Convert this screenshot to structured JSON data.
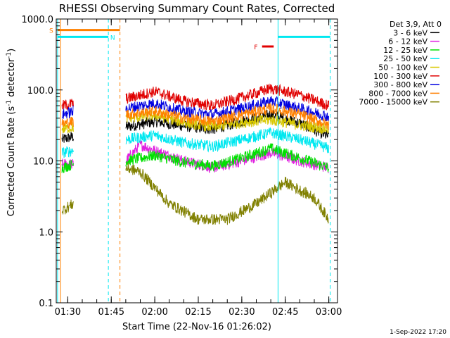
{
  "chart_data": {
    "type": "line",
    "title": "RHESSI Observing Summary Count Rates, Corrected",
    "xlabel": "Start Time (22-Nov-16 01:26:02)",
    "ylabel": "Corrected Count Rate (s⁻¹ detector⁻¹)",
    "ylabel_main": "Corrected Count Rate (s",
    "ylabel_sup1": "-1",
    "ylabel_mid": " detector",
    "ylabel_sup2": "-1",
    "ylabel_end": ")",
    "y_scale": "log",
    "ylim": [
      0.1,
      1000
    ],
    "xlim": [
      "01:26:02",
      "03:03:00"
    ],
    "y_ticks": [
      {
        "value": 0.1,
        "label": "0.1"
      },
      {
        "value": 1,
        "label": "1.0"
      },
      {
        "value": 10,
        "label": "10.0"
      },
      {
        "value": 100,
        "label": "100.0"
      },
      {
        "value": 1000,
        "label": "1000.0"
      }
    ],
    "x_ticks": [
      "01:30",
      "01:45",
      "02:00",
      "02:15",
      "02:30",
      "02:45",
      "03:00"
    ],
    "legend_header": "Det 3,9, Att 0",
    "legend_placement": "top-right",
    "timestamp": "1-Sep-2022 17:20",
    "series": [
      {
        "name": "3 - 6 keV",
        "color": "#000000",
        "segments": [
          {
            "x": [
              "01:28",
              "01:32"
            ],
            "y": [
              20,
              22
            ]
          },
          {
            "x": [
              "01:50",
              "02:00",
              "02:10",
              "02:20",
              "02:30",
              "02:40",
              "02:50",
              "03:00"
            ],
            "y": [
              30,
              36,
              31,
              28,
              36,
              45,
              34,
              22
            ]
          }
        ]
      },
      {
        "name": "6 - 12 keV",
        "color": "#e020e0",
        "segments": [
          {
            "x": [
              "01:28",
              "01:32"
            ],
            "y": [
              9,
              9
            ]
          },
          {
            "x": [
              "01:50",
              "01:55",
              "02:00",
              "02:10",
              "02:20",
              "02:30",
              "02:40",
              "02:50",
              "03:00"
            ],
            "y": [
              10,
              17,
              14,
              10,
              8,
              10,
              13,
              10,
              8
            ]
          }
        ]
      },
      {
        "name": "12 - 25 keV",
        "color": "#00e000",
        "segments": [
          {
            "x": [
              "01:28",
              "01:32"
            ],
            "y": [
              8,
              9
            ]
          },
          {
            "x": [
              "01:50",
              "02:00",
              "02:10",
              "02:20",
              "02:30",
              "02:40",
              "02:50",
              "03:00"
            ],
            "y": [
              10,
              12,
              9.5,
              8.5,
              11,
              15,
              11,
              8
            ]
          }
        ]
      },
      {
        "name": "25 - 50 keV",
        "color": "#00e8f0",
        "segments": [
          {
            "x": [
              "01:28",
              "01:32"
            ],
            "y": [
              13,
              14
            ]
          },
          {
            "x": [
              "01:50",
              "02:00",
              "02:10",
              "02:20",
              "02:30",
              "02:40",
              "02:50",
              "03:00"
            ],
            "y": [
              20,
              23,
              18,
              16,
              20,
              25,
              20,
              15
            ]
          }
        ]
      },
      {
        "name": "50 - 100 keV",
        "color": "#d8c800",
        "segments": [
          {
            "x": [
              "01:28",
              "01:32"
            ],
            "y": [
              28,
              30
            ]
          },
          {
            "x": [
              "01:50",
              "02:00",
              "02:10",
              "02:20",
              "02:30",
              "02:40",
              "02:50",
              "03:00"
            ],
            "y": [
              40,
              44,
              35,
              30,
              35,
              38,
              32,
              28
            ]
          }
        ]
      },
      {
        "name": "100 - 300 keV",
        "color": "#e00000",
        "segments": [
          {
            "x": [
              "01:28",
              "01:32"
            ],
            "y": [
              60,
              65
            ]
          },
          {
            "x": [
              "01:50",
              "02:00",
              "02:10",
              "02:20",
              "02:30",
              "02:40",
              "02:50",
              "03:00"
            ],
            "y": [
              75,
              95,
              70,
              60,
              78,
              105,
              85,
              60
            ]
          }
        ]
      },
      {
        "name": "300 - 800 keV",
        "color": "#0000e0",
        "segments": [
          {
            "x": [
              "01:28",
              "01:32"
            ],
            "y": [
              45,
              50
            ]
          },
          {
            "x": [
              "01:50",
              "02:00",
              "02:10",
              "02:20",
              "02:30",
              "02:40",
              "02:50",
              "03:00"
            ],
            "y": [
              55,
              65,
              50,
              45,
              55,
              70,
              55,
              42
            ]
          }
        ]
      },
      {
        "name": "800 - 7000 keV",
        "color": "#ff8000",
        "segments": [
          {
            "x": [
              "01:28",
              "01:32"
            ],
            "y": [
              33,
              36
            ]
          },
          {
            "x": [
              "01:50",
              "02:00",
              "02:10",
              "02:20",
              "02:30",
              "02:40",
              "02:50",
              "03:00"
            ],
            "y": [
              45,
              50,
              40,
              36,
              45,
              55,
              45,
              32
            ]
          }
        ]
      },
      {
        "name": "7000 - 15000 keV",
        "color": "#808000",
        "segments": [
          {
            "x": [
              "01:28",
              "01:32"
            ],
            "y": [
              2,
              2.5
            ]
          },
          {
            "x": [
              "01:50",
              "01:55",
              "02:05",
              "02:15",
              "02:25",
              "02:35",
              "02:45",
              "02:55",
              "03:00"
            ],
            "y": [
              8,
              7,
              2.5,
              1.5,
              1.5,
              2.5,
              5,
              3,
              1.5
            ]
          }
        ]
      }
    ],
    "annotations": [
      {
        "text": "S",
        "color": "#ff8000"
      },
      {
        "text": "N",
        "color": "#00e8f0"
      },
      {
        "text": "F",
        "color": "#e00000"
      }
    ]
  }
}
